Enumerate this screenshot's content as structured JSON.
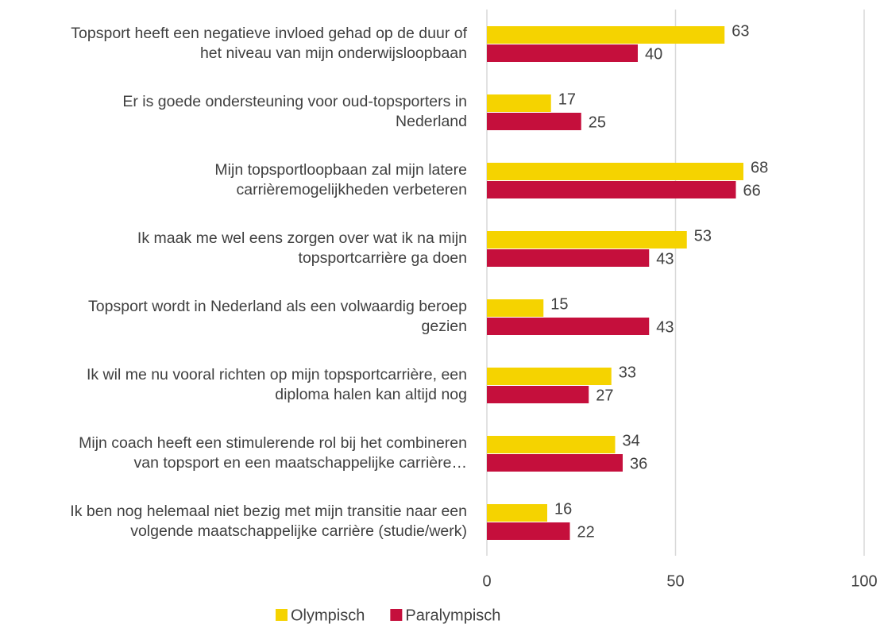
{
  "chart_data": {
    "type": "hbar",
    "categories": [
      "Topsport heeft een negatieve invloed gehad op de duur of\nhet niveau van mijn onderwijsloopbaan",
      "Er is goede ondersteuning voor oud-topsporters in\nNederland",
      "Mijn topsportloopbaan zal mijn latere\ncarrièremogelijkheden verbeteren",
      "Ik maak me wel eens zorgen over wat ik na mijn\ntopsportcarrière ga doen",
      "Topsport wordt in Nederland als een volwaardig beroep\ngezien",
      "Ik wil me nu vooral richten op mijn topsportcarrière, een\ndiploma halen kan altijd nog",
      "Mijn coach heeft een stimulerende rol bij het combineren\nvan topsport en een maatschappelijke carrière…",
      "Ik ben nog helemaal niet bezig met mijn transitie naar een\nvolgende maatschappelijke carrière (studie/werk)"
    ],
    "series": [
      {
        "name": "Olympisch",
        "color": "#f5d300",
        "values": [
          63,
          17,
          68,
          53,
          15,
          33,
          34,
          16
        ]
      },
      {
        "name": "Paralympisch",
        "color": "#c50f3c",
        "values": [
          40,
          25,
          66,
          43,
          43,
          27,
          36,
          22
        ]
      }
    ],
    "xlim": [
      0,
      100
    ],
    "xticks": [
      0,
      50,
      100
    ],
    "grid": true,
    "legend": "bottom"
  }
}
